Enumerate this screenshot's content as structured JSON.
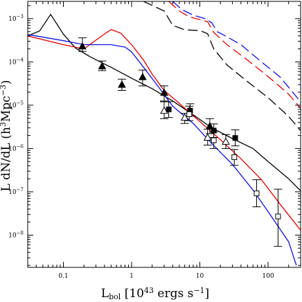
{
  "chart_data": {
    "type": "line",
    "xlabel": "L_bol [10^43 ergs s^-1]",
    "xlabel_parts": {
      "main": "L",
      "sub": "bol",
      "bracket_open": " [10",
      "sup1": "43",
      "mid": " ergs s",
      "sup2": "−1",
      "bracket_close": "]"
    },
    "ylabel": "L dN/dL (h^3Mpc^-3)",
    "ylabel_parts": {
      "main": "L dN/dL (h",
      "sup1": "3",
      "mid": "Mpc",
      "sup2": "−3",
      "close": ")"
    },
    "x_scale": "log",
    "y_scale": "log",
    "xlim": [
      0.03,
      300
    ],
    "ylim": [
      1.8e-09,
      0.0025
    ],
    "x_ticks": [
      {
        "value": 0.1,
        "label": "0.1"
      },
      {
        "value": 1,
        "label": "1"
      },
      {
        "value": 10,
        "label": "10"
      },
      {
        "value": 100,
        "label": "100"
      }
    ],
    "y_ticks": [
      {
        "value": 0.001,
        "label": "10",
        "exp": "−3"
      },
      {
        "value": 0.0001,
        "label": "10",
        "exp": "−4"
      },
      {
        "value": 1e-05,
        "label": "10",
        "exp": "−5"
      },
      {
        "value": 1e-06,
        "label": "10",
        "exp": "−6"
      },
      {
        "value": 1e-07,
        "label": "10",
        "exp": "−7"
      },
      {
        "value": 1e-08,
        "label": "10",
        "exp": "−8"
      }
    ],
    "grid": false,
    "colors": {
      "black": "#000000",
      "red": "#e00000",
      "blue": "#1010e0"
    },
    "series": [
      {
        "color": "#000000",
        "style": "solid",
        "points": [
          [
            0.03,
            0.0004
          ],
          [
            0.045,
            0.00052
          ],
          [
            0.065,
            0.00125
          ],
          [
            0.1,
            0.00044
          ],
          [
            0.15,
            0.00021
          ],
          [
            0.25,
            0.00013
          ],
          [
            0.5,
            7.5e-05
          ],
          [
            1.0,
            4.2e-05
          ],
          [
            2.0,
            2.4e-05
          ],
          [
            4.0,
            1.25e-05
          ],
          [
            8.0,
            6e-06
          ],
          [
            15,
            3e-06
          ],
          [
            30,
            1.7e-06
          ],
          [
            60,
            1e-06
          ],
          [
            100,
            5e-07
          ],
          [
            200,
            2e-07
          ],
          [
            300,
            1.05e-07
          ]
        ]
      },
      {
        "color": "#e00000",
        "style": "solid",
        "points": [
          [
            0.03,
            0.0004
          ],
          [
            0.1,
            0.00025
          ],
          [
            0.2,
            0.0002
          ],
          [
            0.35,
            0.00038
          ],
          [
            0.5,
            0.00056
          ],
          [
            0.7,
            0.00046
          ],
          [
            1.0,
            0.00025
          ],
          [
            1.5,
            0.00011
          ],
          [
            2.0,
            5.2e-05
          ],
          [
            3.0,
            2.2e-05
          ],
          [
            5.0,
            1.1e-05
          ],
          [
            10,
            4.2e-06
          ],
          [
            20,
            1.6e-06
          ],
          [
            40,
            5.8e-07
          ],
          [
            80,
            1.9e-07
          ],
          [
            150,
            5.2e-08
          ],
          [
            300,
            1.3e-08
          ]
        ]
      },
      {
        "color": "#1010e0",
        "style": "solid",
        "points": [
          [
            0.03,
            0.00043
          ],
          [
            0.1,
            0.00031
          ],
          [
            0.2,
            0.00025
          ],
          [
            0.5,
            0.00025
          ],
          [
            0.8,
            0.00022
          ],
          [
            1.0,
            0.00017
          ],
          [
            1.5,
            7.5e-05
          ],
          [
            2.5,
            2.6e-05
          ],
          [
            4.0,
            9.5e-06
          ],
          [
            8.0,
            3.8e-06
          ],
          [
            15,
            1.3e-06
          ],
          [
            30,
            4.3e-07
          ],
          [
            60,
            1.1e-07
          ],
          [
            100,
            3.5e-08
          ],
          [
            200,
            7e-09
          ],
          [
            260,
            2e-09
          ]
        ]
      },
      {
        "color": "#000000",
        "style": "dashed",
        "points": [
          [
            1.5,
            0.0025
          ],
          [
            3.0,
            0.0015
          ],
          [
            4.0,
            0.0007
          ],
          [
            6.0,
            0.00055
          ],
          [
            10,
            0.00053
          ],
          [
            13,
            0.00045
          ],
          [
            16,
            0.0002
          ],
          [
            25,
            8.5e-05
          ],
          [
            50,
            3.5e-05
          ],
          [
            100,
            1.5e-05
          ],
          [
            200,
            5.5e-06
          ],
          [
            300,
            2.6e-06
          ]
        ]
      },
      {
        "color": "#e00000",
        "style": "dashed",
        "points": [
          [
            3.5,
            0.0025
          ],
          [
            5.0,
            0.0015
          ],
          [
            7.0,
            0.0011
          ],
          [
            10,
            0.00095
          ],
          [
            13,
            0.00085
          ],
          [
            16,
            0.00048
          ],
          [
            25,
            0.00025
          ],
          [
            50,
            0.00011
          ],
          [
            100,
            4.6e-05
          ],
          [
            200,
            1.8e-05
          ],
          [
            300,
            8.5e-06
          ]
        ]
      },
      {
        "color": "#1010e0",
        "style": "dashed",
        "points": [
          [
            4.0,
            0.0025
          ],
          [
            5.5,
            0.0016
          ],
          [
            8.0,
            0.0012
          ],
          [
            12,
            0.001
          ],
          [
            15,
            0.0008
          ],
          [
            18,
            0.0005
          ],
          [
            25,
            0.00038
          ],
          [
            40,
            0.00025
          ],
          [
            80,
            0.0001
          ],
          [
            150,
            4.5e-05
          ],
          [
            300,
            1.2e-05
          ]
        ]
      }
    ],
    "markers": [
      {
        "shape": "triangle",
        "filled": true,
        "x": 0.19,
        "y": 0.00023,
        "y_lo": 0.000175,
        "y_hi": 0.00036
      },
      {
        "shape": "triangle",
        "filled": true,
        "x": 0.37,
        "y": 8e-05,
        "y_lo": 6.3e-05,
        "y_hi": 0.000105
      },
      {
        "shape": "triangle",
        "filled": true,
        "x": 0.72,
        "y": 3e-05,
        "y_lo": 2.2e-05,
        "y_hi": 4e-05
      },
      {
        "shape": "triangle",
        "filled": true,
        "x": 1.45,
        "y": 4.5e-05,
        "y_lo": 2.8e-05,
        "y_hi": 6.5e-05
      },
      {
        "shape": "triangle",
        "filled": true,
        "x": 3.0,
        "y": 1.95e-05,
        "y_lo": 1.2e-05,
        "y_hi": 2.8e-05
      },
      {
        "shape": "triangle",
        "filled": true,
        "x": 14,
        "y": 3.3e-06,
        "y_lo": 2.2e-06,
        "y_hi": 4.9e-06
      },
      {
        "shape": "triangle",
        "filled": false,
        "x": 3.0,
        "y": 7.5e-06,
        "y_lo": 4.9e-06,
        "y_hi": 1.25e-05
      },
      {
        "shape": "triangle",
        "filled": false,
        "x": 6.0,
        "y": 5.2e-06,
        "y_lo": 3.8e-06,
        "y_hi": 6.5e-06
      },
      {
        "shape": "triangle",
        "filled": false,
        "x": 13,
        "y": 1.8e-06,
        "y_lo": 1.2e-06,
        "y_hi": 2.8e-06
      },
      {
        "shape": "triangle",
        "filled": false,
        "x": 24,
        "y": 1.45e-06,
        "y_lo": 1e-06,
        "y_hi": 2.1e-06
      },
      {
        "shape": "square",
        "filled": true,
        "x": 3.5,
        "y": 8e-06,
        "y_lo": 5.2e-06,
        "y_hi": 1.2e-05
      },
      {
        "shape": "square",
        "filled": true,
        "x": 7.2,
        "y": 7.5e-06,
        "y_lo": 5.6e-06,
        "y_hi": 1.08e-05
      },
      {
        "shape": "square",
        "filled": true,
        "x": 16,
        "y": 2.6e-06,
        "y_lo": 1.8e-06,
        "y_hi": 3.7e-06
      },
      {
        "shape": "square",
        "filled": true,
        "x": 33,
        "y": 1.75e-06,
        "y_lo": 1.15e-06,
        "y_hi": 2.7e-06
      },
      {
        "shape": "square",
        "filled": false,
        "x": 7.0,
        "y": 6.2e-06,
        "y_lo": 4.4e-06,
        "y_hi": 9.5e-06
      },
      {
        "shape": "square",
        "filled": false,
        "x": 16,
        "y": 1.55e-06,
        "y_lo": 1e-06,
        "y_hi": 2.4e-06
      },
      {
        "shape": "square",
        "filled": false,
        "x": 32,
        "y": 6.3e-07,
        "y_lo": 4.1e-07,
        "y_hi": 9.5e-07
      },
      {
        "shape": "square",
        "filled": false,
        "x": 68,
        "y": 9.2e-08,
        "y_lo": 4.5e-08,
        "y_hi": 1.9e-07
      },
      {
        "shape": "square",
        "filled": false,
        "x": 140,
        "y": 2.7e-08,
        "y_lo": 5.5e-09,
        "y_hi": 1.15e-07
      }
    ]
  }
}
